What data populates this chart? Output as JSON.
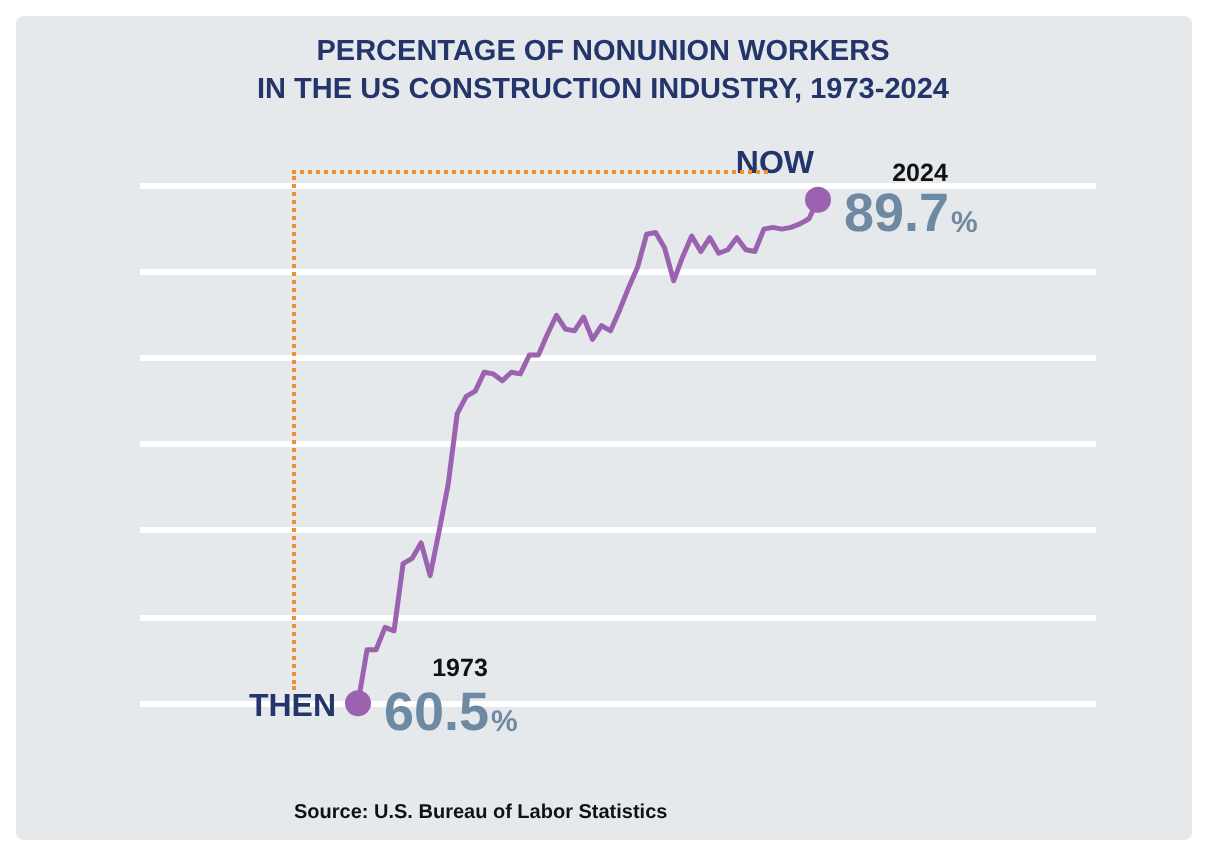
{
  "chart_data": {
    "type": "line",
    "title": "PERCENTAGE OF NONUNION WORKERS\nIN THE US CONSTRUCTION INDUSTRY, 1973-2024",
    "categories": [
      null,
      null,
      null,
      null,
      null,
      null,
      null,
      null,
      null,
      null,
      null,
      null,
      null,
      null,
      null,
      null,
      null,
      null,
      null,
      null,
      null,
      null,
      null,
      null,
      null,
      null,
      null,
      null,
      null,
      null,
      null,
      null,
      null,
      null,
      null,
      null,
      null,
      null,
      null,
      null,
      null,
      null,
      null,
      null,
      null,
      null,
      null,
      null,
      null,
      null,
      null,
      null
    ],
    "series": [
      {
        "color": "#9b62b0",
        "values": [
          60.5,
          63.6,
          63.6,
          64.9,
          64.7,
          68.6,
          68.9,
          69.8,
          67.9,
          70.5,
          73.2,
          77.3,
          78.3,
          78.6,
          79.7,
          79.6,
          79.2,
          79.7,
          79.6,
          80.7,
          80.7,
          81.9,
          83.0,
          82.2,
          82.1,
          82.9,
          81.6,
          82.4,
          82.1,
          83.3,
          84.6,
          85.8,
          87.7,
          87.8,
          86.9,
          85.0,
          86.4,
          87.6,
          86.7,
          87.5,
          86.6,
          86.8,
          87.5,
          86.8,
          86.7,
          88.0,
          88.1,
          88.0,
          88.1,
          88.3,
          88.6,
          89.7
        ],
        "value_labels": [
          "60.5%",
          null,
          null,
          null,
          null,
          null,
          null,
          null,
          null,
          null,
          null,
          null,
          null,
          null,
          null,
          null,
          null,
          null,
          null,
          null,
          null,
          null,
          null,
          null,
          null,
          null,
          null,
          null,
          null,
          null,
          null,
          null,
          null,
          null,
          null,
          null,
          null,
          null,
          null,
          null,
          null,
          null,
          null,
          null,
          null,
          null,
          null,
          null,
          null,
          null,
          null,
          "89.7%"
        ]
      }
    ],
    "yticks": [
      {
        "value": 60.5,
        "label": null
      },
      {
        "value": 65.5,
        "label": null
      },
      {
        "value": 70.5,
        "label": null
      },
      {
        "value": 75.5,
        "label": null
      },
      {
        "value": 80.5,
        "label": null
      },
      {
        "value": 85.5,
        "label": null
      },
      {
        "value": 90.5,
        "label": null
      }
    ],
    "grid": "y",
    "line_style": "solid",
    "annotations": [
      "THEN",
      "1973",
      "NOW",
      "2024",
      "Source: U.S. Bureau of Labor Statistics"
    ]
  }
}
